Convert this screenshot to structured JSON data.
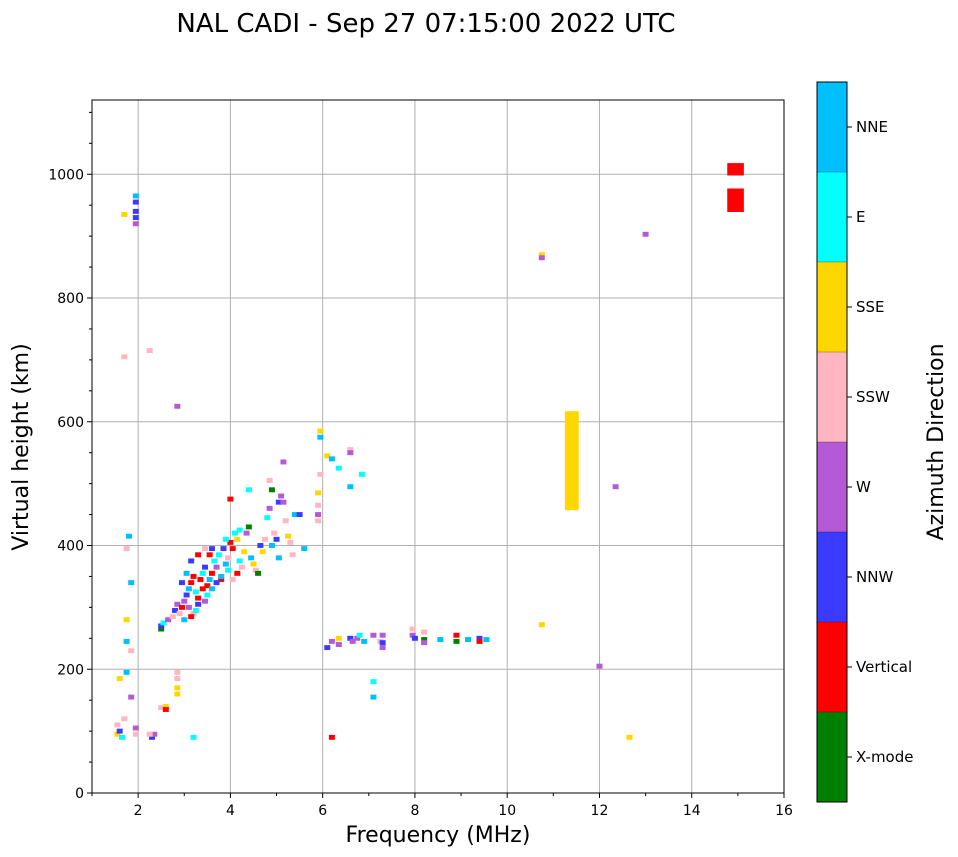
{
  "chart_data": {
    "type": "scatter",
    "title": "NAL CADI - Sep 27 07:15:00 2022 UTC",
    "xlabel": "Frequency (MHz)",
    "ylabel": "Virtual height (km)",
    "colorbar_label": "Azimuth Direction",
    "xlim": [
      1,
      16
    ],
    "ylim": [
      0,
      1120
    ],
    "xticks": [
      "2",
      "4",
      "6",
      "8",
      "10",
      "12",
      "14",
      "16"
    ],
    "yticks": [
      "0",
      "200",
      "400",
      "600",
      "800",
      "1000"
    ],
    "grid": true,
    "categories": [
      {
        "name": "X-mode",
        "color": "#008000"
      },
      {
        "name": "Vertical",
        "color": "#ff0000"
      },
      {
        "name": "NNW",
        "color": "#3b3bff"
      },
      {
        "name": "W",
        "color": "#b45ad6"
      },
      {
        "name": "SSW",
        "color": "#ffb6c1"
      },
      {
        "name": "SSE",
        "color": "#ffd700"
      },
      {
        "name": "E",
        "color": "#00ffff"
      },
      {
        "name": "NNE",
        "color": "#00bfff"
      }
    ],
    "points": [
      [
        1.55,
        95,
        5
      ],
      [
        1.55,
        110,
        4
      ],
      [
        1.6,
        100,
        2
      ],
      [
        1.65,
        90,
        6
      ],
      [
        1.7,
        120,
        4
      ],
      [
        1.75,
        195,
        7
      ],
      [
        1.6,
        185,
        5
      ],
      [
        1.75,
        245,
        7
      ],
      [
        1.75,
        280,
        5
      ],
      [
        1.75,
        395,
        4
      ],
      [
        1.8,
        415,
        7
      ],
      [
        1.85,
        340,
        7
      ],
      [
        1.85,
        230,
        4
      ],
      [
        1.85,
        155,
        3
      ],
      [
        1.95,
        95,
        4
      ],
      [
        1.95,
        105,
        3
      ],
      [
        1.95,
        930,
        2
      ],
      [
        1.95,
        920,
        3
      ],
      [
        1.95,
        940,
        2
      ],
      [
        1.95,
        955,
        2
      ],
      [
        1.95,
        965,
        7
      ],
      [
        1.7,
        935,
        5
      ],
      [
        1.7,
        705,
        4
      ],
      [
        2.25,
        715,
        4
      ],
      [
        2.85,
        625,
        3
      ],
      [
        2.3,
        90,
        2
      ],
      [
        2.35,
        95,
        3
      ],
      [
        2.25,
        95,
        4
      ],
      [
        2.5,
        138,
        4
      ],
      [
        2.6,
        140,
        5
      ],
      [
        2.6,
        135,
        1
      ],
      [
        2.85,
        160,
        5
      ],
      [
        2.85,
        170,
        5
      ],
      [
        2.85,
        185,
        4
      ],
      [
        2.85,
        195,
        4
      ],
      [
        3.2,
        90,
        6
      ],
      [
        2.5,
        265,
        0
      ],
      [
        2.5,
        270,
        2
      ],
      [
        2.55,
        275,
        6
      ],
      [
        2.65,
        280,
        3
      ],
      [
        2.75,
        285,
        4
      ],
      [
        2.8,
        295,
        2
      ],
      [
        2.85,
        305,
        3
      ],
      [
        2.9,
        290,
        4
      ],
      [
        2.95,
        300,
        1
      ],
      [
        3.0,
        310,
        3
      ],
      [
        3.05,
        320,
        2
      ],
      [
        3.1,
        330,
        7
      ],
      [
        3.15,
        340,
        1
      ],
      [
        3.2,
        350,
        1
      ],
      [
        3.25,
        325,
        6
      ],
      [
        3.3,
        315,
        1
      ],
      [
        3.35,
        345,
        1
      ],
      [
        3.4,
        355,
        6
      ],
      [
        3.45,
        365,
        2
      ],
      [
        3.5,
        335,
        1
      ],
      [
        3.55,
        345,
        7
      ],
      [
        3.6,
        355,
        1
      ],
      [
        3.65,
        375,
        6
      ],
      [
        3.7,
        365,
        3
      ],
      [
        3.75,
        385,
        6
      ],
      [
        3.8,
        345,
        1
      ],
      [
        3.85,
        395,
        2
      ],
      [
        3.9,
        370,
        7
      ],
      [
        3.95,
        380,
        4
      ],
      [
        4.0,
        405,
        1
      ],
      [
        4.05,
        395,
        1
      ],
      [
        4.1,
        420,
        6
      ],
      [
        4.15,
        410,
        5
      ],
      [
        4.2,
        375,
        6
      ],
      [
        4.25,
        365,
        4
      ],
      [
        4.3,
        390,
        5
      ],
      [
        4.35,
        420,
        3
      ],
      [
        4.4,
        430,
        0
      ],
      [
        4.45,
        380,
        7
      ],
      [
        4.5,
        370,
        5
      ],
      [
        4.55,
        360,
        4
      ],
      [
        4.6,
        355,
        0
      ],
      [
        4.65,
        400,
        2
      ],
      [
        4.7,
        390,
        5
      ],
      [
        4.75,
        410,
        4
      ],
      [
        4.8,
        445,
        6
      ],
      [
        4.85,
        460,
        3
      ],
      [
        4.9,
        400,
        7
      ],
      [
        4.95,
        420,
        4
      ],
      [
        5.0,
        410,
        2
      ],
      [
        5.05,
        470,
        2
      ],
      [
        5.1,
        480,
        3
      ],
      [
        5.15,
        470,
        3
      ],
      [
        5.2,
        440,
        4
      ],
      [
        5.25,
        415,
        5
      ],
      [
        5.3,
        405,
        4
      ],
      [
        5.35,
        385,
        4
      ],
      [
        5.4,
        450,
        7
      ],
      [
        5.5,
        450,
        2
      ],
      [
        5.6,
        395,
        7
      ],
      [
        5.05,
        380,
        7
      ],
      [
        4.85,
        505,
        4
      ],
      [
        5.15,
        535,
        3
      ],
      [
        4.9,
        490,
        0
      ],
      [
        4.4,
        490,
        6
      ],
      [
        4.0,
        475,
        1
      ],
      [
        3.55,
        385,
        1
      ],
      [
        3.6,
        395,
        2
      ],
      [
        3.9,
        410,
        6
      ],
      [
        4.2,
        425,
        6
      ],
      [
        3.1,
        300,
        3
      ],
      [
        3.2,
        290,
        4
      ],
      [
        3.3,
        305,
        2
      ],
      [
        3.4,
        330,
        1
      ],
      [
        3.5,
        320,
        6
      ],
      [
        3.0,
        280,
        7
      ],
      [
        3.15,
        285,
        1
      ],
      [
        3.25,
        295,
        6
      ],
      [
        3.45,
        310,
        3
      ],
      [
        3.6,
        330,
        7
      ],
      [
        3.7,
        340,
        2
      ],
      [
        3.8,
        350,
        7
      ],
      [
        3.95,
        360,
        6
      ],
      [
        4.05,
        345,
        4
      ],
      [
        4.15,
        355,
        1
      ],
      [
        2.95,
        340,
        2
      ],
      [
        3.05,
        355,
        7
      ],
      [
        3.15,
        375,
        2
      ],
      [
        3.3,
        385,
        1
      ],
      [
        3.45,
        395,
        4
      ],
      [
        5.9,
        440,
        4
      ],
      [
        5.9,
        450,
        3
      ],
      [
        5.9,
        465,
        4
      ],
      [
        5.9,
        485,
        5
      ],
      [
        5.95,
        515,
        4
      ],
      [
        5.95,
        585,
        5
      ],
      [
        5.95,
        575,
        7
      ],
      [
        6.1,
        545,
        5
      ],
      [
        6.2,
        540,
        7
      ],
      [
        6.35,
        525,
        6
      ],
      [
        6.6,
        555,
        4
      ],
      [
        6.6,
        550,
        3
      ],
      [
        6.6,
        495,
        7
      ],
      [
        6.85,
        515,
        6
      ],
      [
        6.1,
        235,
        2
      ],
      [
        6.2,
        245,
        3
      ],
      [
        6.35,
        250,
        5
      ],
      [
        6.35,
        240,
        3
      ],
      [
        6.6,
        250,
        2
      ],
      [
        6.65,
        245,
        3
      ],
      [
        6.75,
        250,
        3
      ],
      [
        6.8,
        255,
        6
      ],
      [
        6.9,
        245,
        7
      ],
      [
        7.1,
        255,
        3
      ],
      [
        7.25,
        245,
        4
      ],
      [
        7.3,
        255,
        3
      ],
      [
        7.3,
        235,
        3
      ],
      [
        7.3,
        243,
        2
      ],
      [
        7.1,
        180,
        6
      ],
      [
        7.1,
        155,
        7
      ],
      [
        7.95,
        265,
        4
      ],
      [
        7.95,
        255,
        3
      ],
      [
        8.0,
        250,
        2
      ],
      [
        8.2,
        260,
        4
      ],
      [
        8.2,
        248,
        0
      ],
      [
        8.2,
        243,
        3
      ],
      [
        8.55,
        248,
        7
      ],
      [
        8.9,
        255,
        1
      ],
      [
        8.9,
        245,
        0
      ],
      [
        9.15,
        248,
        7
      ],
      [
        9.4,
        250,
        2
      ],
      [
        9.4,
        245,
        1
      ],
      [
        9.55,
        248,
        7
      ],
      [
        6.2,
        90,
        1
      ],
      [
        10.75,
        870,
        5
      ],
      [
        10.75,
        865,
        3
      ],
      [
        10.75,
        272,
        5
      ],
      [
        12.0,
        205,
        3
      ],
      [
        12.35,
        495,
        3
      ],
      [
        12.65,
        90,
        5
      ],
      [
        13.0,
        903,
        3
      ]
    ],
    "rects": [
      [
        11.4,
        537,
        0.3,
        160,
        5
      ],
      [
        14.95,
        1008,
        0.36,
        20,
        1
      ],
      [
        14.95,
        958,
        0.36,
        38,
        1
      ]
    ]
  }
}
